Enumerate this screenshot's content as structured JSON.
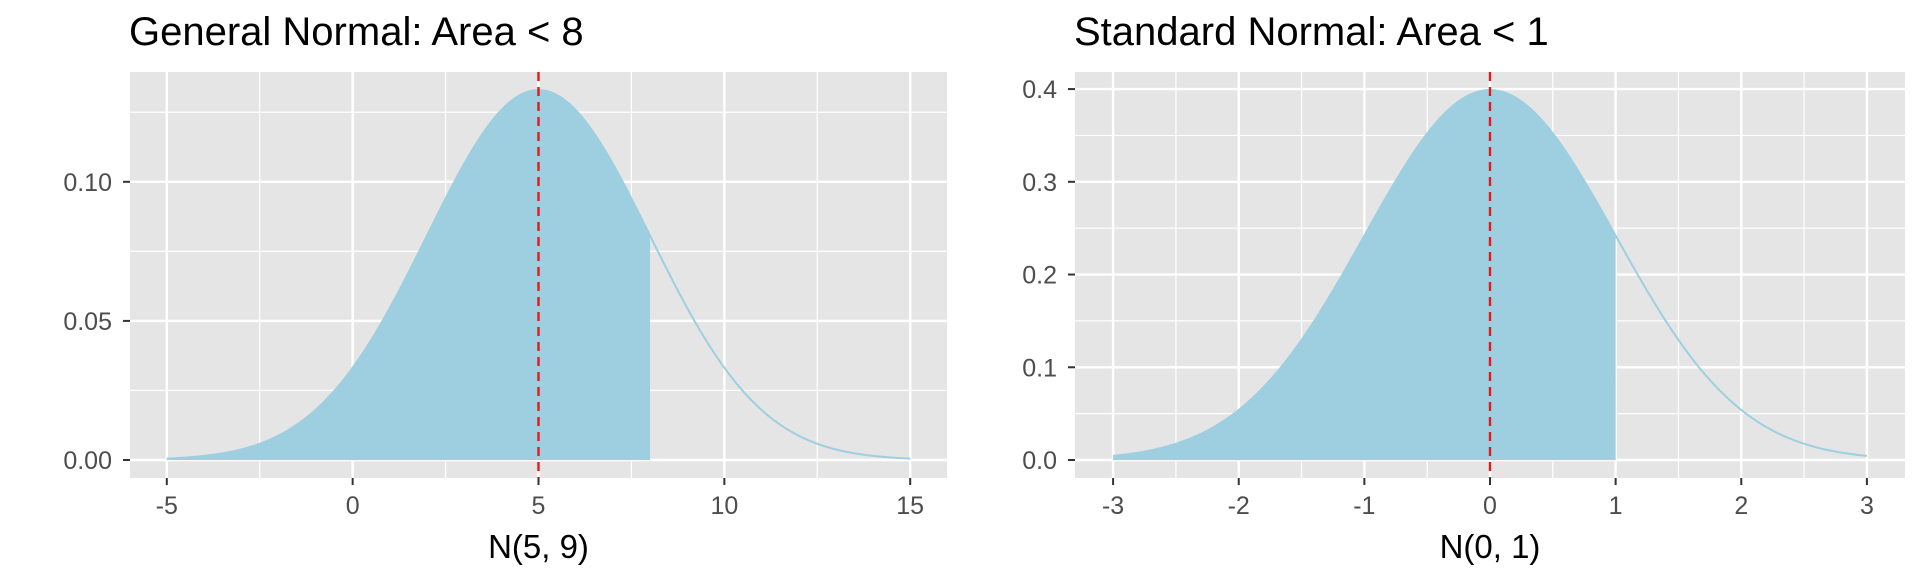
{
  "chart_data": [
    {
      "type": "area",
      "title": "General Normal: Area < 8",
      "xlabel": "N(5, 9)",
      "ylabel": "",
      "distribution": {
        "mean": 5,
        "variance": 9
      },
      "shade_upper": 8,
      "mean_line": 5,
      "xlim": [
        -5,
        15
      ],
      "ylim": [
        0,
        0.133
      ],
      "x_ticks": [
        -5,
        0,
        5,
        10,
        15
      ],
      "x_tick_labels": [
        "-5",
        "0",
        "5",
        "10",
        "15"
      ],
      "y_ticks": [
        0,
        0.05,
        0.1
      ],
      "y_tick_labels": [
        "0.00",
        "0.05",
        "0.10"
      ],
      "grid": true,
      "colors": {
        "fill": "#9ecfe0",
        "curve": "#9ecfe0",
        "mean_line": "#e31a1c",
        "panel": "#e5e5e5",
        "grid": "#ffffff"
      }
    },
    {
      "type": "area",
      "title": "Standard Normal: Area < 1",
      "xlabel": "N(0, 1)",
      "ylabel": "",
      "distribution": {
        "mean": 0,
        "variance": 1
      },
      "shade_upper": 1,
      "mean_line": 0,
      "xlim": [
        -3,
        3
      ],
      "ylim": [
        0,
        0.399
      ],
      "x_ticks": [
        -3,
        -2,
        -1,
        0,
        1,
        2,
        3
      ],
      "x_tick_labels": [
        "-3",
        "-2",
        "-1",
        "0",
        "1",
        "2",
        "3"
      ],
      "y_ticks": [
        0,
        0.1,
        0.2,
        0.3,
        0.4
      ],
      "y_tick_labels": [
        "0.0",
        "0.1",
        "0.2",
        "0.3",
        "0.4"
      ],
      "grid": true,
      "colors": {
        "fill": "#9ecfe0",
        "curve": "#9ecfe0",
        "mean_line": "#e31a1c",
        "panel": "#e5e5e5",
        "grid": "#ffffff"
      }
    }
  ]
}
